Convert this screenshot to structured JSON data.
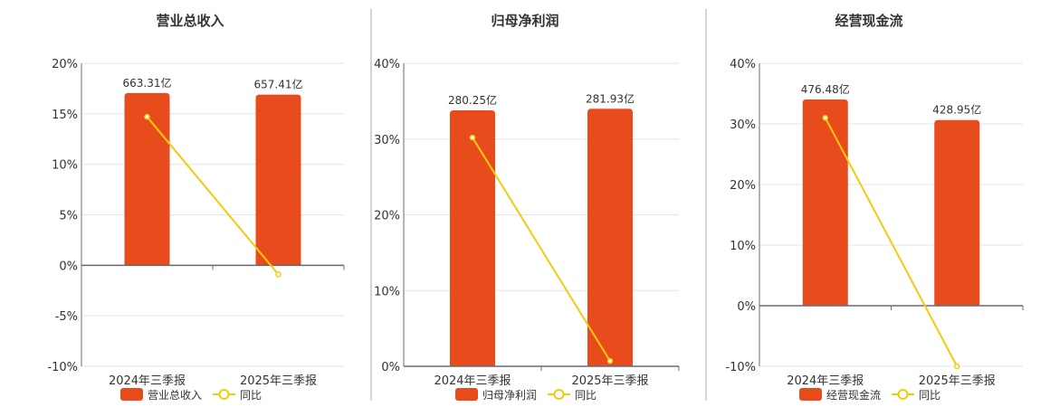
{
  "colors": {
    "bar": "#e84c1c",
    "line": "#f2cc0c",
    "grid": "#e0e6f0",
    "axis": "#666b75",
    "divider": "#aaaaaa"
  },
  "chart_data": [
    {
      "type": "bar+line",
      "title": "营业总收入",
      "categories": [
        "2024年三季报",
        "2025年三季报"
      ],
      "bar_series": {
        "name": "营业总收入",
        "values": [
          663.31,
          657.41
        ],
        "labels": [
          "663.31亿",
          "657.41亿"
        ],
        "unit": "亿"
      },
      "line_series": {
        "name": "同比",
        "values": [
          14.7,
          -0.9
        ],
        "unit": "%"
      },
      "y_ticks": [
        "20%",
        "15%",
        "10%",
        "5%",
        "0%",
        "-5%",
        "-10%"
      ],
      "ylim": [
        -10,
        20
      ],
      "grid": true,
      "legend": "bottom"
    },
    {
      "type": "bar+line",
      "title": "归母净利润",
      "categories": [
        "2024年三季报",
        "2025年三季报"
      ],
      "bar_series": {
        "name": "归母净利润",
        "values": [
          280.25,
          281.93
        ],
        "labels": [
          "280.25亿",
          "281.93亿"
        ],
        "unit": "亿"
      },
      "line_series": {
        "name": "同比",
        "values": [
          30.2,
          0.7
        ],
        "unit": "%"
      },
      "y_ticks": [
        "40%",
        "30%",
        "20%",
        "10%",
        "0%"
      ],
      "ylim": [
        0,
        40
      ],
      "grid": true,
      "legend": "bottom"
    },
    {
      "type": "bar+line",
      "title": "经营现金流",
      "categories": [
        "2024年三季报",
        "2025年三季报"
      ],
      "bar_series": {
        "name": "经营现金流",
        "values": [
          476.48,
          428.95
        ],
        "labels": [
          "476.48亿",
          "428.95亿"
        ],
        "unit": "亿"
      },
      "line_series": {
        "name": "同比",
        "values": [
          31.0,
          -10.0
        ],
        "unit": "%"
      },
      "y_ticks": [
        "40%",
        "30%",
        "20%",
        "10%",
        "0%",
        "-10%"
      ],
      "ylim": [
        -10,
        40
      ],
      "grid": true,
      "legend": "bottom"
    }
  ]
}
